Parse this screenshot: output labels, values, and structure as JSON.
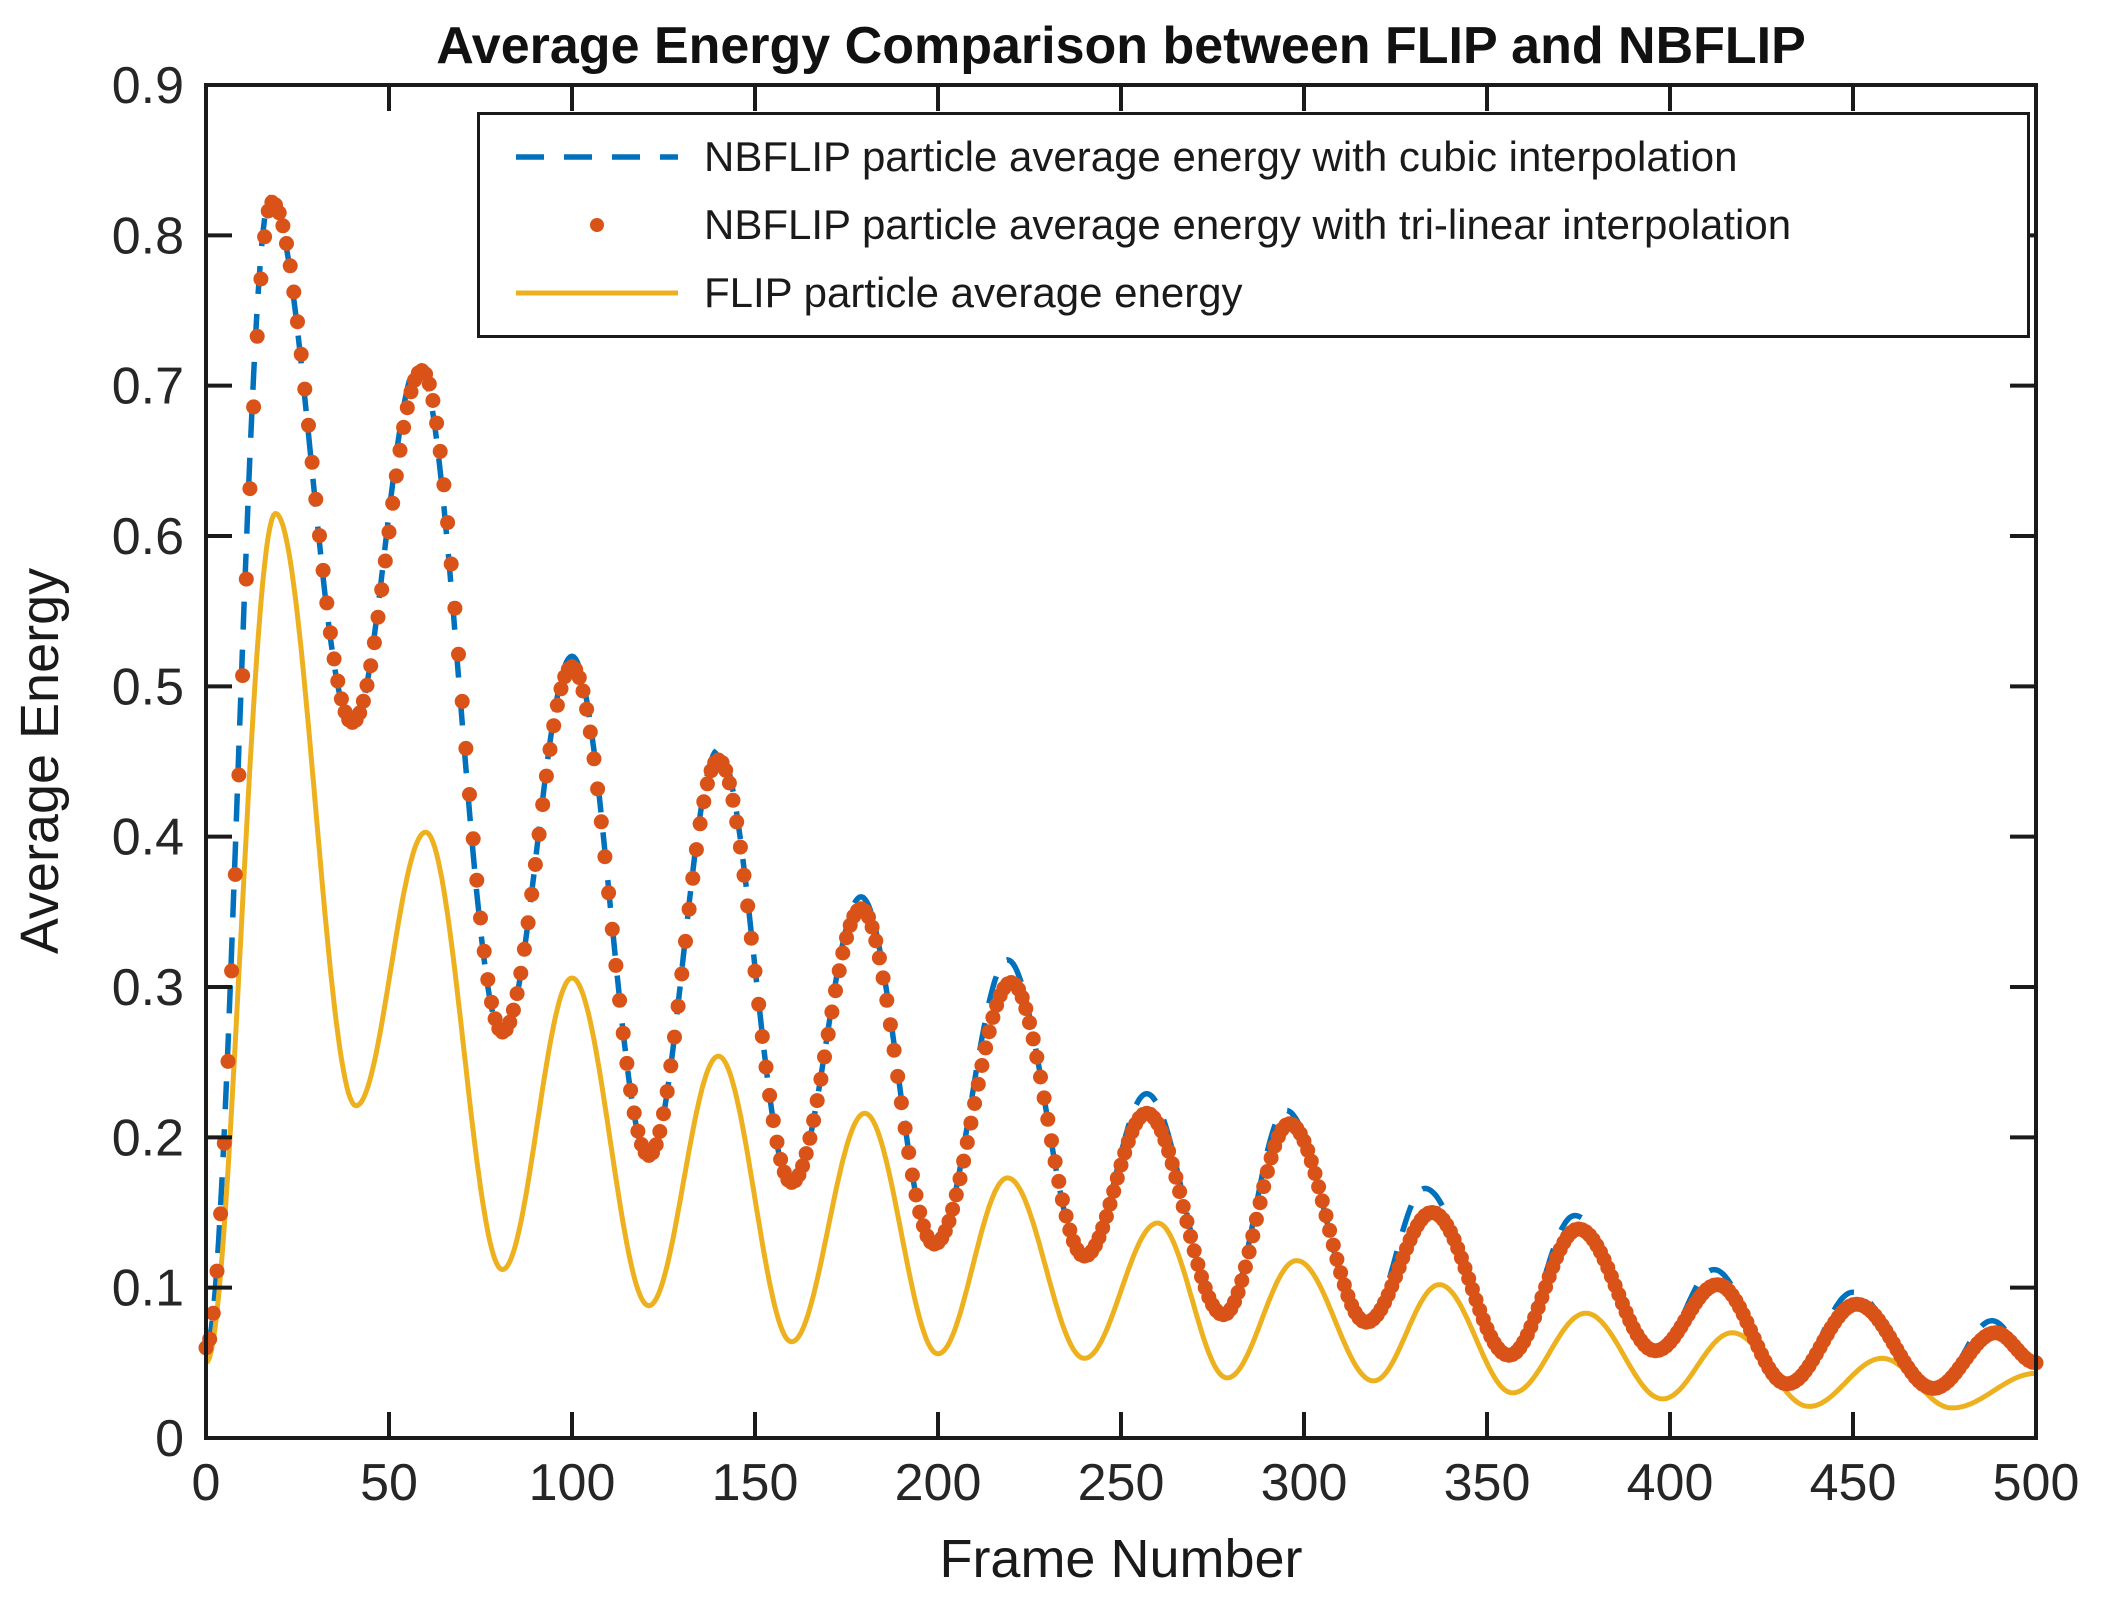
{
  "chart": {
    "title": "Average Energy Comparison between FLIP and NBFLIP",
    "xlabel": "Frame Number",
    "ylabel": "Average Energy"
  },
  "legend": {
    "position": "upper right inside axes",
    "items": [
      {
        "label": "NBFLIP particle average energy with cubic interpolation",
        "marker": "dashed-line",
        "color": "#0072BD"
      },
      {
        "label": "NBFLIP particle average energy with tri-linear interpolation",
        "marker": "dot",
        "color": "#D95319"
      },
      {
        "label": "FLIP particle average energy",
        "marker": "solid-line",
        "color": "#EDB120"
      }
    ]
  },
  "axes_style": {
    "box": true,
    "axis_color": "#1a1a1a",
    "tick_direction": "in",
    "grid": false,
    "background": "#ffffff"
  },
  "chart_data": {
    "type": "line",
    "title": "Average Energy Comparison between FLIP and NBFLIP",
    "xlabel": "Frame Number",
    "ylabel": "Average Energy",
    "xlim": [
      0,
      500
    ],
    "ylim": [
      0,
      0.9
    ],
    "x_ticks": [
      0,
      50,
      100,
      150,
      200,
      250,
      300,
      350,
      400,
      450,
      500
    ],
    "x_tick_labels": [
      "0",
      "50",
      "100",
      "150",
      "200",
      "250",
      "300",
      "350",
      "400",
      "450",
      "500"
    ],
    "y_ticks": [
      0,
      0.1,
      0.2,
      0.3,
      0.4,
      0.5,
      0.6,
      0.7,
      0.8,
      0.9
    ],
    "y_tick_labels": [
      "0",
      "0.1",
      "0.2",
      "0.3",
      "0.4",
      "0.5",
      "0.6",
      "0.7",
      "0.8",
      "0.9"
    ],
    "grid": false,
    "legend_position": "upper center-right",
    "description": "Damped oscillations (period ~39 frames). Anchor points [frame, avg energy] are the measured peaks/valleys/endpoints; each series varies smoothly between consecutive anchors.",
    "series": [
      {
        "name": "NBFLIP particle average energy with cubic interpolation",
        "type": "line",
        "style": "dashed",
        "color": "#0072BD",
        "line_width": 5.5,
        "anchor_points_frame_energy": [
          [
            0,
            0.06
          ],
          [
            17.5,
            0.825
          ],
          [
            40,
            0.474
          ],
          [
            58,
            0.714
          ],
          [
            81,
            0.268
          ],
          [
            100,
            0.52
          ],
          [
            121,
            0.186
          ],
          [
            140,
            0.458
          ],
          [
            160,
            0.168
          ],
          [
            179,
            0.36
          ],
          [
            199,
            0.127
          ],
          [
            219,
            0.318
          ],
          [
            240,
            0.119
          ],
          [
            257,
            0.229
          ],
          [
            278,
            0.08
          ],
          [
            295,
            0.218
          ],
          [
            317,
            0.075
          ],
          [
            333,
            0.166
          ],
          [
            356,
            0.054
          ],
          [
            374,
            0.148
          ],
          [
            396,
            0.056
          ],
          [
            412,
            0.112
          ],
          [
            432,
            0.034
          ],
          [
            450,
            0.097
          ],
          [
            472,
            0.032
          ],
          [
            488,
            0.078
          ],
          [
            500,
            0.048
          ]
        ]
      },
      {
        "name": "NBFLIP particle average energy with tri-linear interpolation",
        "type": "scatter",
        "style": "dots",
        "marker": "filled-circle",
        "marker_radius": 7.5,
        "sample_step_frames": 1,
        "color": "#D95319",
        "anchor_points_frame_energy": [
          [
            0,
            0.06
          ],
          [
            18,
            0.822
          ],
          [
            40,
            0.476
          ],
          [
            59,
            0.71
          ],
          [
            81,
            0.27
          ],
          [
            100,
            0.513
          ],
          [
            121,
            0.188
          ],
          [
            140,
            0.451
          ],
          [
            160,
            0.17
          ],
          [
            179,
            0.352
          ],
          [
            199,
            0.129
          ],
          [
            220,
            0.303
          ],
          [
            240,
            0.121
          ],
          [
            257,
            0.216
          ],
          [
            278,
            0.082
          ],
          [
            296,
            0.209
          ],
          [
            317,
            0.077
          ],
          [
            335,
            0.15
          ],
          [
            356,
            0.055
          ],
          [
            375,
            0.139
          ],
          [
            396,
            0.058
          ],
          [
            413,
            0.102
          ],
          [
            432,
            0.036
          ],
          [
            451,
            0.089
          ],
          [
            472,
            0.033
          ],
          [
            489,
            0.07
          ],
          [
            500,
            0.05
          ]
        ]
      },
      {
        "name": "FLIP particle average energy",
        "type": "line",
        "style": "solid",
        "color": "#EDB120",
        "line_width": 5,
        "anchor_points_frame_energy": [
          [
            0,
            0.05
          ],
          [
            19,
            0.615
          ],
          [
            41,
            0.221
          ],
          [
            60,
            0.403
          ],
          [
            81,
            0.112
          ],
          [
            100,
            0.306
          ],
          [
            121,
            0.088
          ],
          [
            140,
            0.254
          ],
          [
            160,
            0.064
          ],
          [
            180,
            0.216
          ],
          [
            200,
            0.056
          ],
          [
            219,
            0.173
          ],
          [
            240,
            0.053
          ],
          [
            260,
            0.143
          ],
          [
            279,
            0.04
          ],
          [
            298,
            0.118
          ],
          [
            319,
            0.038
          ],
          [
            337,
            0.102
          ],
          [
            357,
            0.03
          ],
          [
            377,
            0.083
          ],
          [
            398,
            0.026
          ],
          [
            417,
            0.07
          ],
          [
            438,
            0.021
          ],
          [
            458,
            0.053
          ],
          [
            477,
            0.02
          ],
          [
            500,
            0.043
          ]
        ]
      }
    ]
  }
}
